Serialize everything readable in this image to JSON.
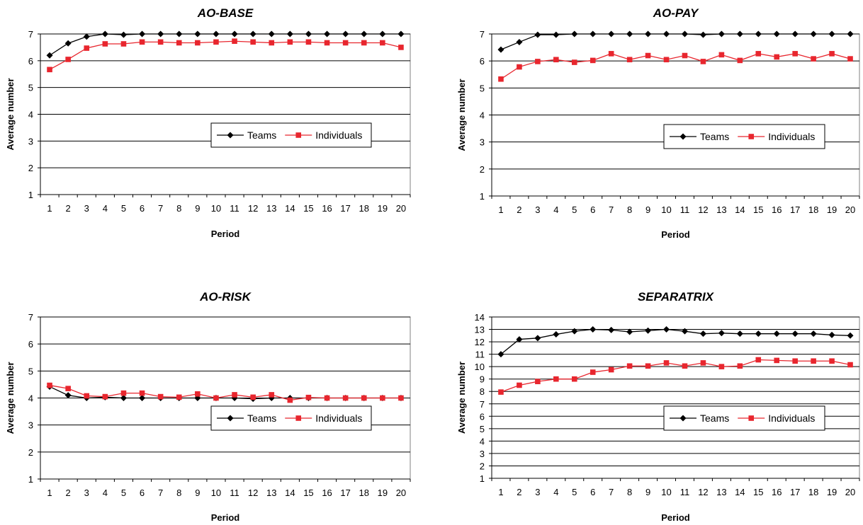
{
  "chart_data": [
    {
      "type": "line",
      "title": "AO-BASE",
      "xlabel": "Period",
      "ylabel": "Average number",
      "ylim": [
        1,
        7
      ],
      "yticks": [
        1,
        2,
        3,
        4,
        5,
        6,
        7
      ],
      "x": [
        1,
        2,
        3,
        4,
        5,
        6,
        7,
        8,
        9,
        10,
        11,
        12,
        13,
        14,
        15,
        16,
        17,
        18,
        19,
        20
      ],
      "grid": true,
      "legend": "center-right",
      "series": [
        {
          "name": "Teams",
          "color": "#000000",
          "marker": "diamond",
          "values": [
            6.2,
            6.65,
            6.9,
            7.0,
            6.97,
            7.0,
            7.0,
            7.0,
            7.0,
            7.0,
            7.0,
            7.0,
            7.0,
            7.0,
            7.0,
            7.0,
            7.0,
            7.0,
            7.0,
            7.0
          ]
        },
        {
          "name": "Individuals",
          "color": "#e8262e",
          "marker": "square",
          "values": [
            5.67,
            6.05,
            6.47,
            6.63,
            6.63,
            6.7,
            6.7,
            6.67,
            6.67,
            6.7,
            6.73,
            6.7,
            6.67,
            6.7,
            6.7,
            6.67,
            6.67,
            6.67,
            6.67,
            6.5
          ]
        }
      ]
    },
    {
      "type": "line",
      "title": "AO-PAY",
      "xlabel": "Period",
      "ylabel": "Average number",
      "ylim": [
        1,
        7
      ],
      "yticks": [
        1,
        2,
        3,
        4,
        5,
        6,
        7
      ],
      "x": [
        1,
        2,
        3,
        4,
        5,
        6,
        7,
        8,
        9,
        10,
        11,
        12,
        13,
        14,
        15,
        16,
        17,
        18,
        19,
        20
      ],
      "grid": true,
      "legend": "center-right",
      "series": [
        {
          "name": "Teams",
          "color": "#000000",
          "marker": "diamond",
          "values": [
            6.42,
            6.7,
            6.97,
            6.97,
            7.0,
            7.0,
            7.0,
            7.0,
            7.0,
            7.0,
            7.0,
            6.97,
            7.0,
            7.0,
            7.0,
            7.0,
            7.0,
            7.0,
            7.0,
            7.0
          ]
        },
        {
          "name": "Individuals",
          "color": "#e8262e",
          "marker": "square",
          "values": [
            5.33,
            5.78,
            5.98,
            6.05,
            5.95,
            6.02,
            6.27,
            6.05,
            6.2,
            6.05,
            6.2,
            5.98,
            6.23,
            6.02,
            6.27,
            6.15,
            6.27,
            6.08,
            6.27,
            6.08
          ]
        }
      ]
    },
    {
      "type": "line",
      "title": "AO-RISK",
      "xlabel": "Period",
      "ylabel": "Average number",
      "ylim": [
        1,
        7
      ],
      "yticks": [
        1,
        2,
        3,
        4,
        5,
        6,
        7
      ],
      "x": [
        1,
        2,
        3,
        4,
        5,
        6,
        7,
        8,
        9,
        10,
        11,
        12,
        13,
        14,
        15,
        16,
        17,
        18,
        19,
        20
      ],
      "grid": true,
      "legend": "center-right",
      "series": [
        {
          "name": "Teams",
          "color": "#000000",
          "marker": "diamond",
          "values": [
            4.42,
            4.1,
            4.0,
            4.03,
            4.0,
            4.0,
            4.0,
            4.0,
            4.0,
            4.0,
            4.0,
            3.97,
            4.0,
            4.0,
            4.0,
            4.0,
            4.0,
            4.0,
            4.0,
            4.0
          ]
        },
        {
          "name": "Individuals",
          "color": "#e8262e",
          "marker": "square",
          "values": [
            4.47,
            4.35,
            4.08,
            4.05,
            4.18,
            4.18,
            4.05,
            4.03,
            4.15,
            4.0,
            4.12,
            4.03,
            4.12,
            3.92,
            4.02,
            4.0,
            4.0,
            4.0,
            4.0,
            4.0
          ]
        }
      ]
    },
    {
      "type": "line",
      "title": "SEPARATRIX",
      "xlabel": "Period",
      "ylabel": "Average number",
      "ylim": [
        1,
        14
      ],
      "yticks": [
        1,
        2,
        3,
        4,
        5,
        6,
        7,
        8,
        9,
        10,
        11,
        12,
        13,
        14
      ],
      "x": [
        1,
        2,
        3,
        4,
        5,
        6,
        7,
        8,
        9,
        10,
        11,
        12,
        13,
        14,
        15,
        16,
        17,
        18,
        19,
        20
      ],
      "grid": true,
      "legend": "center-right",
      "series": [
        {
          "name": "Teams",
          "color": "#000000",
          "marker": "diamond",
          "values": [
            11.0,
            12.2,
            12.3,
            12.6,
            12.85,
            13.0,
            12.95,
            12.8,
            12.9,
            13.0,
            12.85,
            12.65,
            12.7,
            12.65,
            12.65,
            12.65,
            12.65,
            12.65,
            12.55,
            12.5
          ]
        },
        {
          "name": "Individuals",
          "color": "#e8262e",
          "marker": "square",
          "values": [
            7.95,
            8.5,
            8.8,
            9.0,
            9.0,
            9.55,
            9.75,
            10.05,
            10.05,
            10.3,
            10.05,
            10.3,
            10.0,
            10.05,
            10.55,
            10.5,
            10.45,
            10.45,
            10.45,
            10.15
          ]
        }
      ]
    }
  ]
}
